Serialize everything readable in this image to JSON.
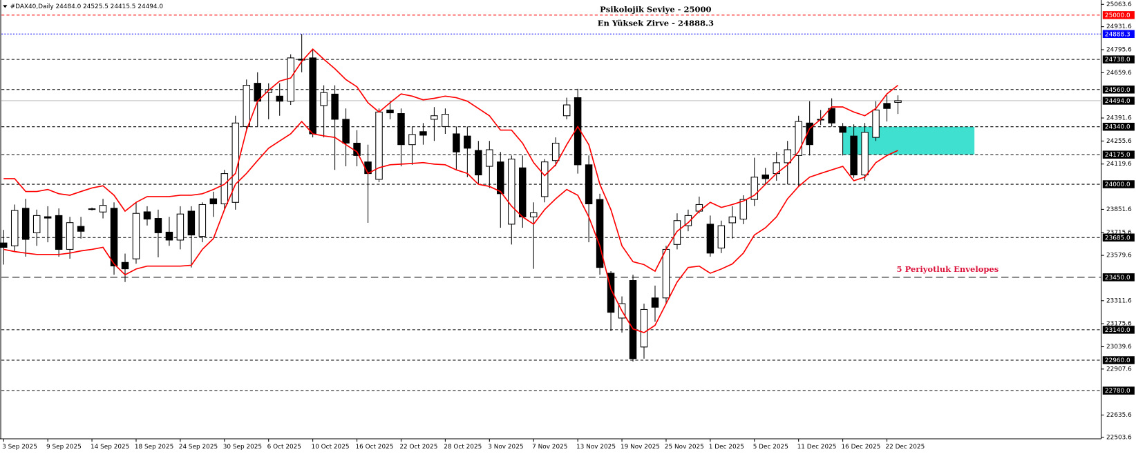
{
  "chart_data": {
    "type": "candlestick",
    "header": "#DAX40,Daily  24484.0 24525.5 24415.5 24494.0",
    "categories": [
      "3 Sep 2025",
      null,
      null,
      null,
      "9 Sep 2025",
      null,
      null,
      null,
      "14 Sep 2025",
      null,
      null,
      null,
      "18 Sep 2025",
      null,
      null,
      null,
      "24 Sep 2025",
      null,
      null,
      null,
      "30 Sep 2025",
      null,
      null,
      null,
      "6 Oct 2025",
      null,
      null,
      null,
      "10 Oct 2025",
      null,
      null,
      null,
      "16 Oct 2025",
      null,
      null,
      null,
      "22 Oct 2025",
      null,
      null,
      null,
      "28 Oct 2025",
      null,
      null,
      null,
      "3 Nov 2025",
      null,
      null,
      null,
      "7 Nov 2025",
      null,
      null,
      null,
      "13 Nov 2025",
      null,
      null,
      null,
      "19 Nov 2025",
      null,
      null,
      null,
      "25 Nov 2025",
      null,
      null,
      null,
      "1 Dec 2025",
      null,
      null,
      null,
      "5 Dec 2025",
      null,
      null,
      null,
      "11 Dec 2025",
      null,
      null,
      null,
      "16 Dec 2025",
      null,
      null,
      null,
      "22 Dec 2025",
      null
    ],
    "open": [
      23653,
      23636,
      23858,
      23713,
      23808,
      23815,
      23615,
      23751,
      23853,
      23836,
      23858,
      23538,
      23559,
      23837,
      23798,
      23717,
      23670,
      23841,
      23692,
      23914,
      23884,
      23893,
      24341,
      24597,
      24542,
      24521,
      24491,
      24740,
      24747,
      24465,
      24533,
      24384,
      24243,
      24132,
      24029,
      24439,
      24418,
      24234,
      24311,
      24384,
      24341,
      24298,
      24285,
      24200,
      24106,
      24132,
      23764,
      24097,
      23807,
      23927,
      24140,
      24405,
      24512,
      24115,
      23910,
      23474,
      23209,
      23431,
      23038,
      23328,
      23328,
      23644,
      23755,
      23841,
      23764,
      23623,
      23772,
      23794,
      23910,
      24055,
      24063,
      24127,
      24170,
      24362,
      24384,
      24448,
      24341,
      24285,
      24055,
      24277,
      24478,
      24484
    ],
    "high": [
      23730,
      23880,
      23914,
      23850,
      23870,
      23857,
      23807,
      23807,
      23862,
      23914,
      23893,
      23590,
      23893,
      23870,
      23850,
      23807,
      23870,
      23870,
      23893,
      23956,
      24085,
      24405,
      24619,
      24662,
      24597,
      24597,
      24768,
      24888.3,
      24798,
      24585,
      24585,
      24448,
      24320,
      24234,
      24448,
      24491,
      24448,
      24341,
      24362,
      24456,
      24448,
      24341,
      24341,
      24256,
      24256,
      24191,
      24170,
      24170,
      23893,
      24149,
      24277,
      24512,
      24564,
      24170,
      23944,
      23486,
      23337,
      23465,
      23294,
      23401,
      23636,
      23828,
      23850,
      23927,
      23815,
      23785,
      23870,
      23935,
      24157,
      24097,
      24191,
      24256,
      24405,
      24491,
      24439,
      24508,
      24362,
      24354,
      24362,
      24491,
      24525,
      24525.5
    ],
    "low": [
      23525,
      23600,
      23572,
      23636,
      23657,
      23572,
      23560,
      23679,
      23845,
      23798,
      23465,
      23422,
      23530,
      23756,
      23568,
      23636,
      23615,
      23508,
      23657,
      23807,
      23850,
      23850,
      24320,
      24341,
      24384,
      24405,
      24469,
      24662,
      24277,
      24277,
      24085,
      24106,
      24106,
      23772,
      24012,
      24384,
      24106,
      24115,
      24234,
      24256,
      24298,
      24085,
      24042,
      24000,
      23978,
      23743,
      23644,
      23743,
      23500,
      23893,
      24106,
      24384,
      24063,
      23657,
      23465,
      23132,
      23123,
      22952,
      22969,
      23187,
      23294,
      23615,
      23722,
      23828,
      23572,
      23593,
      23679,
      23764,
      23871,
      24000,
      24021,
      24000,
      23987,
      24170,
      24350,
      24341,
      24170,
      24038,
      24021,
      24256,
      24371,
      24415.5
    ],
    "close": [
      23627,
      23845,
      23674,
      23815,
      23800,
      23615,
      23773,
      23722,
      23855,
      23875,
      23517,
      23500,
      23828,
      23794,
      23713,
      23670,
      23824,
      23700,
      23880,
      23884,
      24063,
      24362,
      24585,
      24491,
      24559,
      24491,
      24747,
      24734,
      24298,
      24542,
      24384,
      24243,
      24170,
      24063,
      24427,
      24422,
      24234,
      24294,
      24290,
      24405,
      24414,
      24191,
      24213,
      24055,
      24204,
      23944,
      24149,
      23807,
      23832,
      24132,
      24243,
      24469,
      24115,
      23884,
      23508,
      23243,
      23294,
      22969,
      23260,
      23273,
      23615,
      23785,
      23815,
      23880,
      23593,
      23755,
      23807,
      23910,
      24042,
      24033,
      24127,
      24204,
      24371,
      24234,
      24384,
      24362,
      24307,
      24055,
      24307,
      24439,
      24448,
      24494
    ],
    "envelope_upper": [
      24033,
      24033,
      23957,
      23957,
      23969,
      23944,
      23935,
      23957,
      23978,
      23991,
      23935,
      23841,
      23893,
      23927,
      23927,
      23927,
      23935,
      23935,
      23944,
      23969,
      24000,
      24064,
      24320,
      24491,
      24555,
      24610,
      24628,
      24726,
      24799,
      24739,
      24683,
      24619,
      24576,
      24482,
      24427,
      24482,
      24534,
      24521,
      24499,
      24508,
      24521,
      24512,
      24491,
      24448,
      24405,
      24320,
      24320,
      24243,
      24128,
      24051,
      24115,
      24234,
      24341,
      24234,
      24000,
      23850,
      23636,
      23542,
      23525,
      23486,
      23615,
      23722,
      23773,
      23841,
      23893,
      23863,
      23880,
      23901,
      23935,
      24000,
      24064,
      24115,
      24192,
      24329,
      24384,
      24457,
      24457,
      24427,
      24405,
      24448,
      24534,
      24585
    ],
    "envelope_lower": [
      23615,
      23602,
      23593,
      23585,
      23585,
      23585,
      23593,
      23606,
      23615,
      23627,
      23529,
      23465,
      23499,
      23516,
      23516,
      23516,
      23516,
      23521,
      23615,
      23679,
      23850,
      24000,
      24064,
      24140,
      24213,
      24256,
      24298,
      24371,
      24298,
      24286,
      24277,
      24234,
      24192,
      24064,
      24098,
      24115,
      24119,
      24123,
      24128,
      24119,
      24115,
      24085,
      24064,
      24000,
      23987,
      23957,
      23871,
      23807,
      23764,
      23850,
      23914,
      23969,
      23935,
      23807,
      23636,
      23380,
      23251,
      23145,
      23123,
      23166,
      23294,
      23422,
      23508,
      23516,
      23474,
      23499,
      23529,
      23593,
      23700,
      23743,
      23807,
      23914,
      23987,
      24042,
      24064,
      24085,
      24106,
      24021,
      24042,
      24128,
      24170,
      24200
    ],
    "envelope_color": "#ff0000",
    "bull_color": "#ffffff",
    "bear_color": "#000000",
    "ylim": [
      22503.6,
      25063.6
    ],
    "yticks": [
      25063.6,
      24931.6,
      24795.6,
      24659.6,
      24391.6,
      24255.6,
      24119.6,
      23851.6,
      23715.6,
      23579.6,
      23311.6,
      23175.6,
      23039.6,
      22907.6,
      22635.6,
      22503.6
    ],
    "levels": [
      {
        "value": 25000,
        "label": "25000.0",
        "color": "#ff0000",
        "style": "dashed"
      },
      {
        "value": 24888.3,
        "label": "24888.3",
        "color": "#0000ff",
        "style": "dotted"
      },
      {
        "value": 24738,
        "label": "24738.0",
        "color": "#000000",
        "style": "dashed"
      },
      {
        "value": 24560,
        "label": "24560.0",
        "color": "#000000",
        "style": "dashed"
      },
      {
        "value": 24494,
        "label": "24494.0",
        "color": "#c0c0c0",
        "style": "solid"
      },
      {
        "value": 24340,
        "label": "24340.0",
        "color": "#000000",
        "style": "dashed"
      },
      {
        "value": 24175,
        "label": "24175.0",
        "color": "#000000",
        "style": "dashed"
      },
      {
        "value": 24000,
        "label": "24000.0",
        "color": "#000000",
        "style": "dashed"
      },
      {
        "value": 23685,
        "label": "23685.0",
        "color": "#000000",
        "style": "dashed"
      },
      {
        "value": 23450,
        "label": "23450.0",
        "color": "#000000",
        "style": "long-dashed"
      },
      {
        "value": 23140,
        "label": "23140.0",
        "color": "#000000",
        "style": "dashed"
      },
      {
        "value": 22960,
        "label": "22960.0",
        "color": "#000000",
        "style": "dashed"
      },
      {
        "value": 22780,
        "label": "22780.0",
        "color": "#000000",
        "style": "dashed"
      }
    ],
    "zone_color": "#40e0d0",
    "annotations": [
      {
        "text": "Psikolojik Seviye - 25000",
        "color": "#000000"
      },
      {
        "text": "En Yüksek Zirve - 24888.3",
        "color": "#000000"
      },
      {
        "text": "5 Periyotluk Envelopes",
        "color": "#dc143c"
      }
    ]
  }
}
